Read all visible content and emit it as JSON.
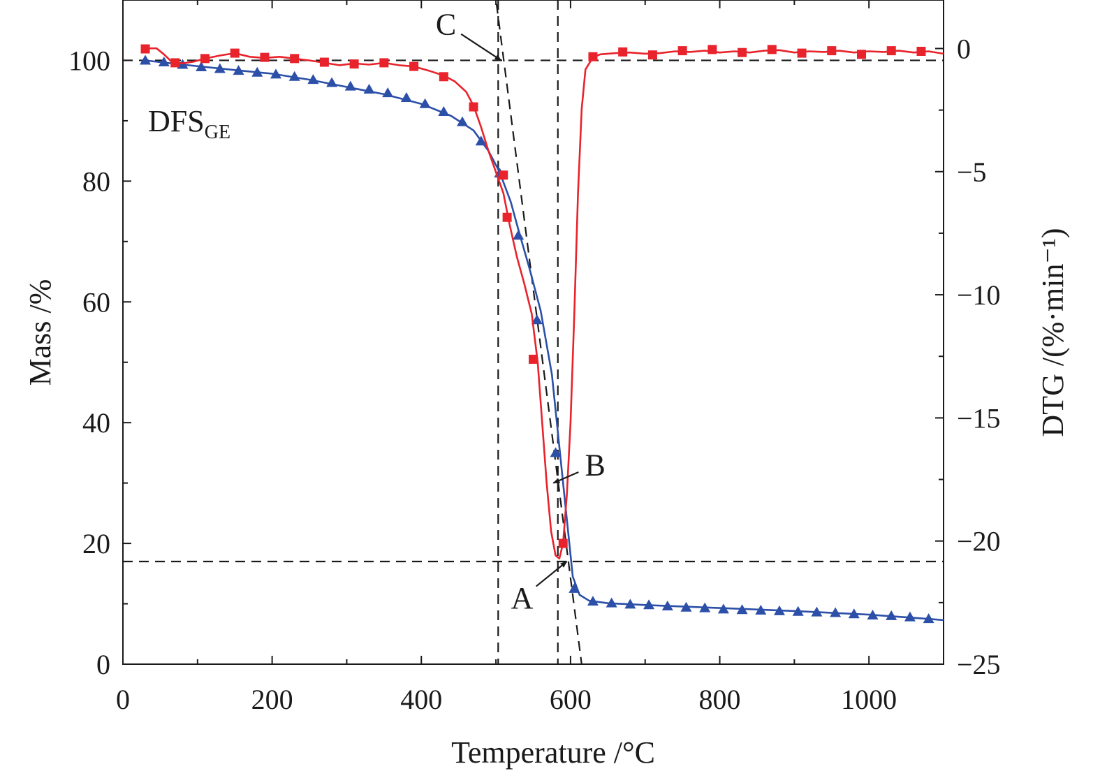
{
  "chart_data": {
    "type": "line",
    "sample_label": "DFS",
    "sample_subscript": "GE",
    "xlabel": "Temperature /°C",
    "ylabel_left": "Mass /%",
    "ylabel_right": "DTG /(%·min⁻¹)",
    "xlim": [
      0,
      1100
    ],
    "ylim_left": [
      0,
      110
    ],
    "ylim_right": [
      -25,
      1.97
    ],
    "x_ticks": [
      0,
      200,
      400,
      600,
      800,
      1000
    ],
    "x_tick_labels": [
      "0",
      "200",
      "400",
      "600",
      "800",
      "1000"
    ],
    "y_left_ticks": [
      0,
      20,
      40,
      60,
      80,
      100
    ],
    "y_left_tick_labels": [
      "0",
      "20",
      "40",
      "60",
      "80",
      "100"
    ],
    "y_right_ticks": [
      0,
      -5,
      -10,
      -15,
      -20,
      -25
    ],
    "y_right_tick_labels": [
      "0",
      "−5",
      "−10",
      "−15",
      "−20",
      "−25"
    ],
    "grid": false,
    "colors": {
      "mass": "#2c4fa8",
      "dtg": "#e8232b",
      "guides": "#1a1a1a"
    },
    "series": [
      {
        "key": "mass",
        "axis": "left",
        "marker": "triangle",
        "line": [
          [
            30,
            100
          ],
          [
            80,
            99.3
          ],
          [
            150,
            98.4
          ],
          [
            200,
            97.8
          ],
          [
            250,
            96.8
          ],
          [
            300,
            95.6
          ],
          [
            350,
            94.4
          ],
          [
            400,
            92.8
          ],
          [
            440,
            90.8
          ],
          [
            470,
            88.4
          ],
          [
            490,
            85.0
          ],
          [
            505,
            81.5
          ],
          [
            520,
            76.5
          ],
          [
            530,
            72.0
          ],
          [
            545,
            65.5
          ],
          [
            560,
            58.5
          ],
          [
            575,
            48.0
          ],
          [
            585,
            36.0
          ],
          [
            595,
            24.0
          ],
          [
            603,
            14.5
          ],
          [
            612,
            11.5
          ],
          [
            625,
            10.5
          ],
          [
            650,
            10.1
          ],
          [
            700,
            9.8
          ],
          [
            800,
            9.3
          ],
          [
            900,
            8.8
          ],
          [
            1000,
            8.2
          ],
          [
            1080,
            7.5
          ],
          [
            1100,
            7.3
          ]
        ],
        "markers": [
          [
            30,
            100
          ],
          [
            55,
            99.7
          ],
          [
            80,
            99.3
          ],
          [
            105,
            98.9
          ],
          [
            130,
            98.6
          ],
          [
            155,
            98.3
          ],
          [
            180,
            98.0
          ],
          [
            205,
            97.7
          ],
          [
            230,
            97.3
          ],
          [
            255,
            96.8
          ],
          [
            280,
            96.3
          ],
          [
            305,
            95.7
          ],
          [
            330,
            95.2
          ],
          [
            355,
            94.6
          ],
          [
            380,
            93.8
          ],
          [
            405,
            92.8
          ],
          [
            430,
            91.5
          ],
          [
            455,
            89.8
          ],
          [
            480,
            86.6
          ],
          [
            505,
            81.3
          ],
          [
            530,
            71.0
          ],
          [
            555,
            57.0
          ],
          [
            580,
            35.0
          ],
          [
            605,
            12.5
          ],
          [
            630,
            10.4
          ],
          [
            655,
            10.1
          ],
          [
            680,
            9.9
          ],
          [
            705,
            9.8
          ],
          [
            730,
            9.6
          ],
          [
            755,
            9.4
          ],
          [
            780,
            9.3
          ],
          [
            805,
            9.1
          ],
          [
            830,
            9.0
          ],
          [
            855,
            8.9
          ],
          [
            880,
            8.8
          ],
          [
            905,
            8.7
          ],
          [
            930,
            8.6
          ],
          [
            955,
            8.5
          ],
          [
            980,
            8.3
          ],
          [
            1005,
            8.1
          ],
          [
            1030,
            8.0
          ],
          [
            1055,
            7.8
          ],
          [
            1080,
            7.5
          ]
        ]
      },
      {
        "key": "dtg",
        "axis": "left",
        "marker": "square",
        "line": [
          [
            30,
            102.0
          ],
          [
            45,
            102.0
          ],
          [
            55,
            101.0
          ],
          [
            65,
            99.8
          ],
          [
            80,
            99.5
          ],
          [
            95,
            99.8
          ],
          [
            110,
            100.3
          ],
          [
            130,
            100.8
          ],
          [
            150,
            101.2
          ],
          [
            170,
            100.6
          ],
          [
            190,
            100.4
          ],
          [
            210,
            100.6
          ],
          [
            230,
            100.3
          ],
          [
            250,
            100.0
          ],
          [
            270,
            99.6
          ],
          [
            290,
            99.2
          ],
          [
            310,
            99.5
          ],
          [
            330,
            99.3
          ],
          [
            350,
            99.6
          ],
          [
            370,
            99.2
          ],
          [
            390,
            99.0
          ],
          [
            410,
            98.3
          ],
          [
            430,
            97.5
          ],
          [
            445,
            96.5
          ],
          [
            460,
            94.8
          ],
          [
            470,
            92.5
          ],
          [
            480,
            89.0
          ],
          [
            490,
            85.0
          ],
          [
            500,
            81.5
          ],
          [
            510,
            78.0
          ],
          [
            518,
            73.0
          ],
          [
            528,
            67.5
          ],
          [
            538,
            63.0
          ],
          [
            548,
            58.0
          ],
          [
            556,
            50.0
          ],
          [
            562,
            40.0
          ],
          [
            568,
            30.0
          ],
          [
            574,
            22.0
          ],
          [
            580,
            18.0
          ],
          [
            585,
            17.5
          ],
          [
            590,
            20.0
          ],
          [
            595,
            28.0
          ],
          [
            600,
            40.0
          ],
          [
            605,
            58.0
          ],
          [
            610,
            78.0
          ],
          [
            615,
            92.0
          ],
          [
            620,
            98.5
          ],
          [
            630,
            100.5
          ],
          [
            640,
            101.0
          ],
          [
            660,
            101.2
          ],
          [
            680,
            101.3
          ],
          [
            700,
            101.1
          ],
          [
            720,
            101.2
          ],
          [
            740,
            101.5
          ],
          [
            760,
            101.4
          ],
          [
            780,
            101.6
          ],
          [
            800,
            101.3
          ],
          [
            820,
            101.5
          ],
          [
            840,
            101.3
          ],
          [
            860,
            101.6
          ],
          [
            880,
            101.7
          ],
          [
            900,
            101.3
          ],
          [
            920,
            101.5
          ],
          [
            940,
            101.4
          ],
          [
            960,
            101.6
          ],
          [
            980,
            101.3
          ],
          [
            1000,
            101.5
          ],
          [
            1020,
            101.4
          ],
          [
            1040,
            101.6
          ],
          [
            1060,
            101.3
          ],
          [
            1080,
            101.5
          ],
          [
            1100,
            101.1
          ]
        ],
        "markers": [
          [
            30,
            101.9
          ],
          [
            70,
            99.6
          ],
          [
            110,
            100.3
          ],
          [
            150,
            101.2
          ],
          [
            190,
            100.5
          ],
          [
            230,
            100.3
          ],
          [
            270,
            99.7
          ],
          [
            310,
            99.4
          ],
          [
            350,
            99.6
          ],
          [
            390,
            99.0
          ],
          [
            430,
            97.3
          ],
          [
            470,
            92.3
          ],
          [
            510,
            81.0
          ],
          [
            515,
            74.0
          ],
          [
            550,
            50.5
          ],
          [
            590,
            20.0
          ],
          [
            630,
            100.6
          ],
          [
            670,
            101.4
          ],
          [
            710,
            100.9
          ],
          [
            750,
            101.6
          ],
          [
            790,
            101.8
          ],
          [
            830,
            101.3
          ],
          [
            870,
            101.8
          ],
          [
            910,
            101.2
          ],
          [
            950,
            101.6
          ],
          [
            990,
            101.0
          ],
          [
            1030,
            101.6
          ],
          [
            1070,
            101.5
          ]
        ]
      }
    ],
    "guides": {
      "hlines": [
        100,
        17
      ],
      "vlines": [
        503,
        583
      ],
      "tangents": [
        [
          [
            498,
            112
          ],
          [
            618,
            -3
          ]
        ]
      ]
    },
    "annotations": [
      {
        "text": "C",
        "tip": [
          507,
          100
        ],
        "label_pos": [
          433,
          106
        ]
      },
      {
        "text": "B",
        "tip": [
          577,
          30
        ],
        "label_pos": [
          633,
          33
        ]
      },
      {
        "text": "A",
        "tip": [
          595,
          17
        ],
        "label_pos": [
          535,
          11
        ]
      }
    ]
  }
}
